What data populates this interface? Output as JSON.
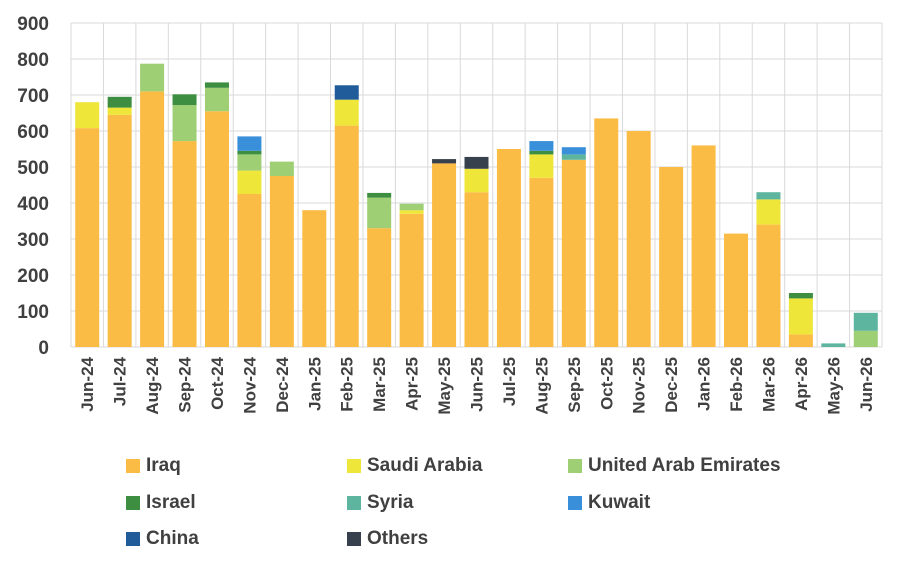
{
  "chart_data": {
    "type": "bar",
    "stacked": true,
    "categories": [
      "Jun-24",
      "Jul-24",
      "Aug-24",
      "Sep-24",
      "Oct-24",
      "Nov-24",
      "Dec-24",
      "Jan-25",
      "Feb-25",
      "Mar-25",
      "Apr-25",
      "May-25",
      "Jun-25",
      "Jul-25",
      "Aug-25",
      "Sep-25",
      "Oct-25",
      "Nov-25",
      "Dec-25",
      "Jan-26",
      "Feb-26",
      "Mar-26",
      "Apr-26",
      "May-26",
      "Jun-26"
    ],
    "ylim": [
      0,
      900
    ],
    "yticks": [
      0,
      100,
      200,
      300,
      400,
      500,
      600,
      700,
      800,
      900
    ],
    "grid": true,
    "legend_position": "bottom",
    "series": [
      {
        "name": "Iraq",
        "color": "#FBBC45",
        "values": [
          608,
          645,
          710,
          572,
          655,
          425,
          475,
          380,
          615,
          330,
          370,
          510,
          430,
          550,
          470,
          520,
          635,
          600,
          500,
          560,
          315,
          340,
          35,
          0,
          0
        ]
      },
      {
        "name": "Saudi Arabia",
        "color": "#EFE63A",
        "values": [
          72,
          20,
          0,
          0,
          0,
          65,
          0,
          0,
          72,
          0,
          10,
          0,
          65,
          0,
          65,
          0,
          0,
          0,
          0,
          0,
          0,
          70,
          100,
          0,
          0
        ]
      },
      {
        "name": "United Arab Emirates",
        "color": "#9ECF74",
        "values": [
          0,
          0,
          77,
          100,
          65,
          45,
          40,
          0,
          0,
          85,
          18,
          0,
          0,
          0,
          0,
          0,
          0,
          0,
          0,
          0,
          0,
          0,
          0,
          0,
          45
        ]
      },
      {
        "name": "Israel",
        "color": "#3E8E41",
        "values": [
          0,
          30,
          0,
          30,
          15,
          10,
          0,
          0,
          0,
          13,
          0,
          0,
          0,
          0,
          10,
          0,
          0,
          0,
          0,
          0,
          0,
          0,
          15,
          0,
          0
        ]
      },
      {
        "name": "Syria",
        "color": "#5DB59F",
        "values": [
          0,
          0,
          0,
          0,
          0,
          0,
          0,
          0,
          0,
          0,
          0,
          0,
          0,
          0,
          0,
          15,
          0,
          0,
          0,
          0,
          0,
          20,
          0,
          10,
          50
        ]
      },
      {
        "name": "Kuwait",
        "color": "#3A8FDA",
        "values": [
          0,
          0,
          0,
          0,
          0,
          40,
          0,
          0,
          0,
          0,
          0,
          0,
          0,
          0,
          27,
          20,
          0,
          0,
          0,
          0,
          0,
          0,
          0,
          0,
          0
        ]
      },
      {
        "name": "China",
        "color": "#1F5C99",
        "values": [
          0,
          0,
          0,
          0,
          0,
          0,
          0,
          0,
          40,
          0,
          0,
          0,
          0,
          0,
          0,
          0,
          0,
          0,
          0,
          0,
          0,
          0,
          0,
          0,
          0
        ]
      },
      {
        "name": "Others",
        "color": "#37414D",
        "values": [
          0,
          0,
          0,
          0,
          0,
          0,
          0,
          0,
          0,
          0,
          0,
          12,
          33,
          0,
          0,
          0,
          0,
          0,
          0,
          0,
          0,
          0,
          0,
          0,
          0
        ]
      }
    ]
  },
  "style": {
    "grid_color": "#d9d9d9",
    "axis_text_color": "#404040"
  }
}
